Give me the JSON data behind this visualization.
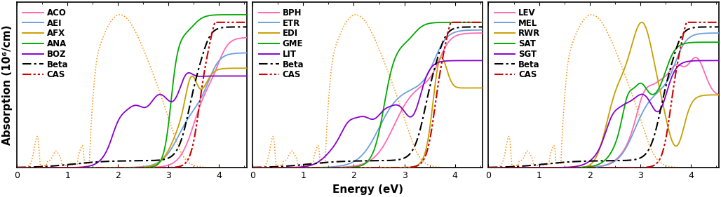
{
  "panels": [
    {
      "labels": [
        "ACO",
        "AEI",
        "AFX",
        "ANA",
        "BOZ",
        "Beta",
        "CAS"
      ]
    },
    {
      "labels": [
        "BPH",
        "ETR",
        "EDI",
        "GME",
        "LIT",
        "Beta",
        "CAS"
      ]
    },
    {
      "labels": [
        "LEV",
        "MEL",
        "RWR",
        "SAT",
        "SGT",
        "Beta",
        "CAS"
      ]
    }
  ],
  "xlabel": "Energy (eV)",
  "ylabel": "Absorption (10⁶/cm)",
  "xlim": [
    0,
    4.55
  ],
  "ylim": [
    0,
    1.08
  ],
  "solar_color": "#FF8C00",
  "curve_colors": [
    "#FF69B4",
    "#6CA0DC",
    "#C8A000",
    "#00AA00",
    "#8800CC"
  ],
  "beta_color": "#000000",
  "cas_color": "#CC0000",
  "legend_fontsize": 8.5,
  "tick_fontsize": 9,
  "label_fontsize": 11
}
